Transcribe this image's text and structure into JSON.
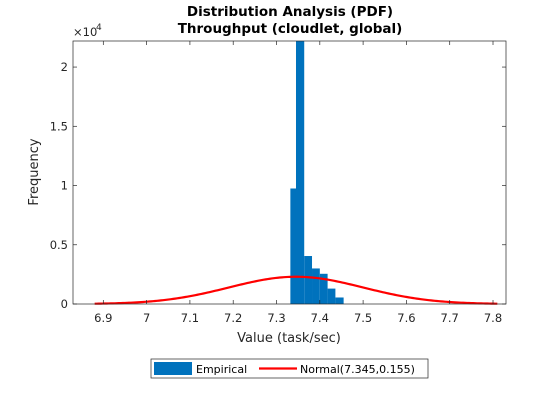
{
  "chart_data": {
    "type": "bar",
    "title": "Distribution Analysis (PDF)",
    "subtitle": "Throughput (cloudlet, global)",
    "xlabel": "Value (task/sec)",
    "ylabel": "Frequency",
    "y_exponent_label": "×10",
    "y_exponent_power": "4",
    "xlim": [
      6.83,
      7.83
    ],
    "ylim": [
      0,
      22200
    ],
    "xticks": [
      6.9,
      7.0,
      7.1,
      7.2,
      7.3,
      7.4,
      7.5,
      7.6,
      7.7,
      7.8
    ],
    "xtick_labels": [
      "6.9",
      "7",
      "7.1",
      "7.2",
      "7.3",
      "7.4",
      "7.5",
      "7.6",
      "7.7",
      "7.8"
    ],
    "yticks": [
      0,
      5000,
      10000,
      15000,
      20000
    ],
    "ytick_labels": [
      "0",
      "0.5",
      "1",
      "1.5",
      "2"
    ],
    "grid": false,
    "legend_position": "bottom-outside",
    "series": [
      {
        "name": "Empirical",
        "kind": "histogram",
        "color": "#0072BD",
        "bin_edges": [
          7.332,
          7.345,
          7.364,
          7.382,
          7.4,
          7.418,
          7.436,
          7.455
        ],
        "counts": [
          9750,
          22200,
          4050,
          3000,
          2550,
          1300,
          550
        ]
      },
      {
        "name": "Normal(7.345,0.155)",
        "kind": "line",
        "color": "#FF0000",
        "mu": 7.345,
        "sigma": 0.155,
        "x_range": [
          6.88,
          7.81
        ],
        "peak": 2300
      }
    ]
  }
}
